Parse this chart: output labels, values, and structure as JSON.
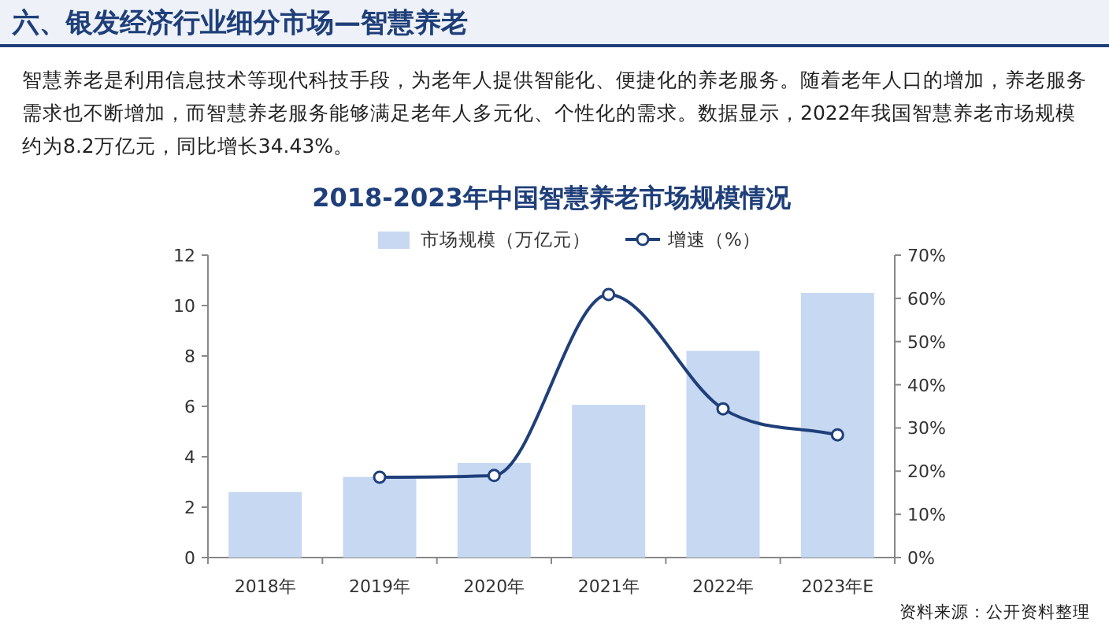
{
  "chart_data": {
    "type": "bar",
    "title": "2018-2023年中国智慧养老市场规模情况",
    "categories": [
      "2018年",
      "2019年",
      "2020年",
      "2021年",
      "2022年",
      "2023年E"
    ],
    "series": [
      {
        "name": "市场规模（万亿元）",
        "color": "#c6d8f2",
        "values": [
          2.6,
          3.2,
          3.75,
          6.06,
          8.2,
          10.5
        ]
      },
      {
        "name": "增速（%）",
        "type": "line",
        "axis": "y2",
        "color": "#1f3f7a",
        "values": [
          null,
          18.6,
          19,
          60.9,
          34.43,
          28.4
        ]
      }
    ],
    "ylim": [
      0,
      12
    ],
    "yticks": [
      0,
      2,
      4,
      6,
      8,
      10,
      12
    ],
    "y2lim": [
      0,
      70
    ],
    "y2ticks": [
      {
        "value": 0,
        "label": "0%"
      },
      {
        "value": 10,
        "label": "10%"
      },
      {
        "value": 20,
        "label": "20%"
      },
      {
        "value": 30,
        "label": "30%"
      },
      {
        "value": 40,
        "label": "40%"
      },
      {
        "value": 50,
        "label": "50%"
      },
      {
        "value": 60,
        "label": "60%"
      },
      {
        "value": 70,
        "label": "70%"
      }
    ],
    "legend": "top",
    "marker": "circle",
    "grid": false,
    "annotations": [
      "六、银发经济行业细分市场—智慧养老",
      "智慧养老是利用信息技术等现代科技手段，为老年人提供智能化、便捷化的养老服务。随着老年人口的增加，养老服务需求也不断增加，而智慧养老服务能够满足老年人多元化、个性化的需求。数据显示，2022年我国智慧养老市场规模约为8.2万亿元，同比增长34.43%。",
      "资料来源：公开资料整理"
    ]
  }
}
